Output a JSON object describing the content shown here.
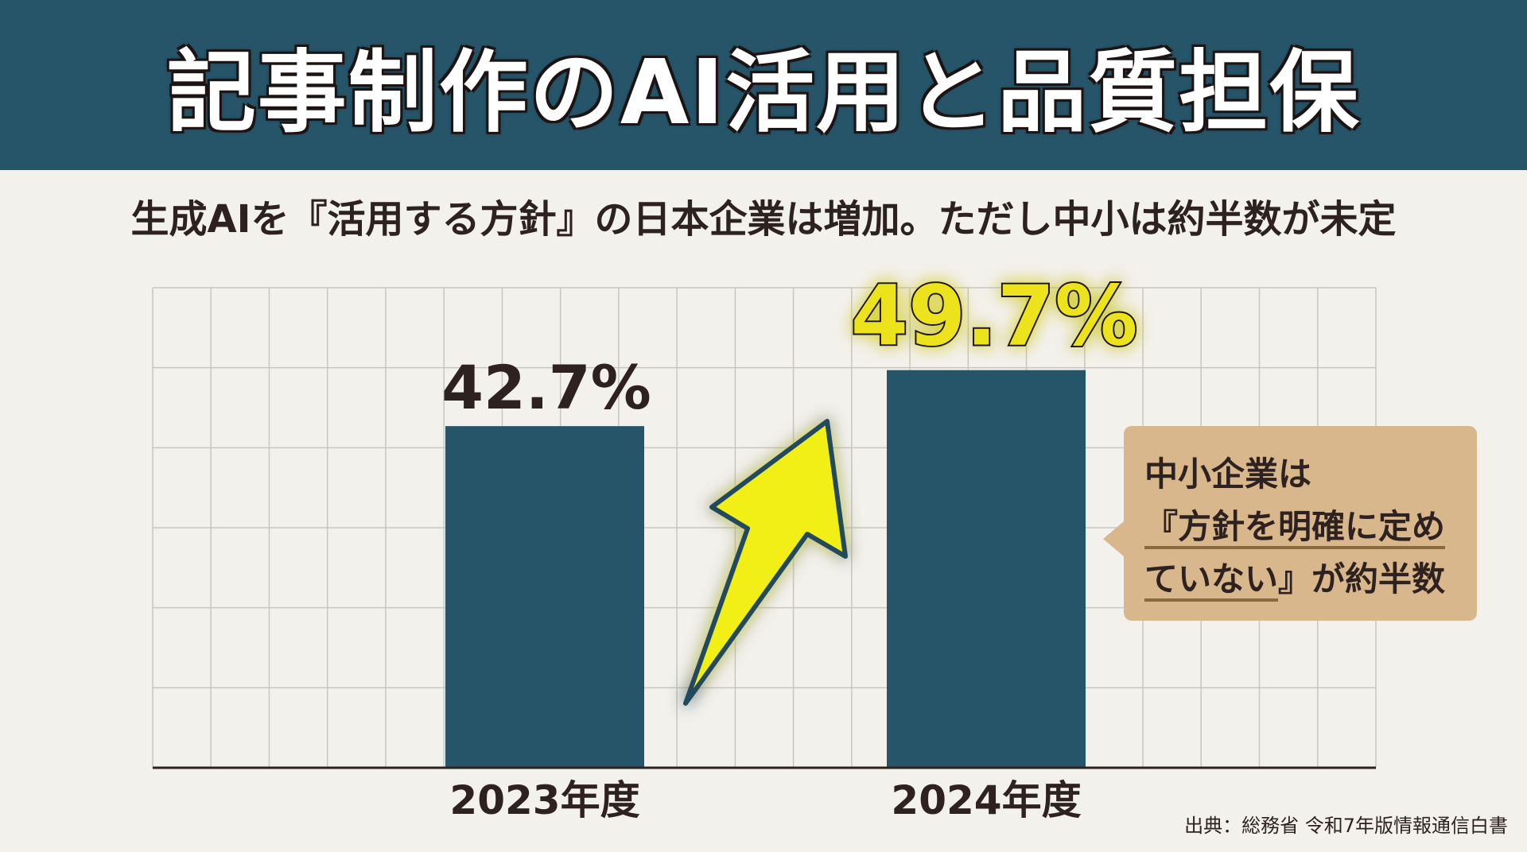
{
  "header": {
    "title": "記事制作のAI活用と品質担保"
  },
  "subtitle": "生成AIを『活用する方針』の日本企業は増加。ただし中小は約半数が未定",
  "chart_data": {
    "type": "bar",
    "categories": [
      "2023年度",
      "2024年度"
    ],
    "values": [
      42.7,
      49.7
    ],
    "value_labels": [
      "42.7%",
      "49.7%"
    ],
    "title": "",
    "xlabel": "",
    "ylabel": "",
    "ylim": [
      0,
      60
    ],
    "grid": true,
    "colors": {
      "bar": "#265468",
      "highlight_label": "#ece31e",
      "arrow": "#f2ef14"
    }
  },
  "callout": {
    "line1": "中小企業は",
    "line2": "『方針を明確に定め",
    "line3_underlined": "ていない",
    "line3_rest": "』が約半数"
  },
  "source": "出典：総務省 令和7年版情報通信白書"
}
